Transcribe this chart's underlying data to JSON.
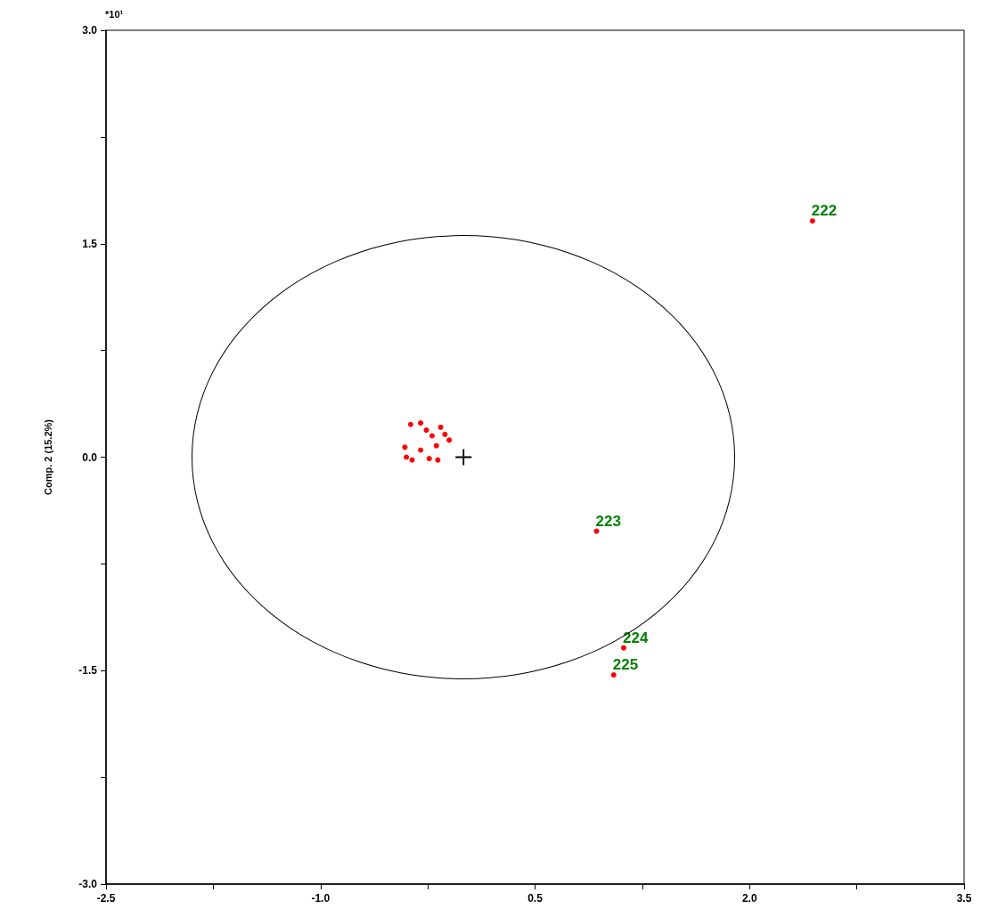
{
  "chart_data": {
    "type": "scatter",
    "ylabel": "Comp. 2 (15.2%)",
    "annotations": [
      "*10¹",
      {
        "text": "222",
        "x": 2.44,
        "y": 1.66
      },
      {
        "text": "223",
        "x": 0.93,
        "y": -0.52
      },
      {
        "text": "224",
        "x": 1.12,
        "y": -1.34
      },
      {
        "text": "225",
        "x": 1.05,
        "y": -1.53
      }
    ],
    "xlim": [
      -2.5,
      3.5
    ],
    "xticks": [
      {
        "value": -2.5,
        "label": "-2.5"
      },
      {
        "value": -1.75,
        "label": null
      },
      {
        "value": -1,
        "label": "-1.0"
      },
      {
        "value": -0.25,
        "label": null
      },
      {
        "value": 0.5,
        "label": "0.5"
      },
      {
        "value": 1.25,
        "label": null
      },
      {
        "value": 2,
        "label": "2.0"
      },
      {
        "value": 2.75,
        "label": null
      },
      {
        "value": 3.5,
        "label": "3.5"
      }
    ],
    "ylim": [
      -3,
      3
    ],
    "yticks": [
      {
        "value": -3,
        "label": "-3.0"
      },
      {
        "value": -2.25,
        "label": null
      },
      {
        "value": -1.5,
        "label": "-1.5"
      },
      {
        "value": -0.75,
        "label": null
      },
      {
        "value": 0,
        "label": "0.0"
      },
      {
        "value": 0.75,
        "label": null
      },
      {
        "value": 1.5,
        "label": "1.5"
      },
      {
        "value": 2.25,
        "label": null
      },
      {
        "value": 3,
        "label": "3.0"
      }
    ],
    "series": [
      {
        "color": "#000000",
        "marker": "cross",
        "x": [
          0
        ],
        "values": [
          0
        ]
      },
      {
        "color": "#ff0000",
        "marker": "circle",
        "x": [
          2.44,
          0.93,
          1.12,
          1.05,
          -0.37,
          -0.3,
          -0.41,
          -0.4,
          -0.36,
          -0.24,
          -0.18,
          -0.3,
          -0.26,
          -0.22,
          -0.16,
          -0.13,
          -0.19,
          -0.1
        ],
        "values": [
          1.66,
          -0.52,
          -1.34,
          -1.53,
          0.23,
          0.24,
          0.07,
          0,
          -0.02,
          -0.01,
          -0.02,
          0.05,
          0.19,
          0.15,
          0.21,
          0.16,
          0.08,
          0.12
        ]
      }
    ]
  }
}
